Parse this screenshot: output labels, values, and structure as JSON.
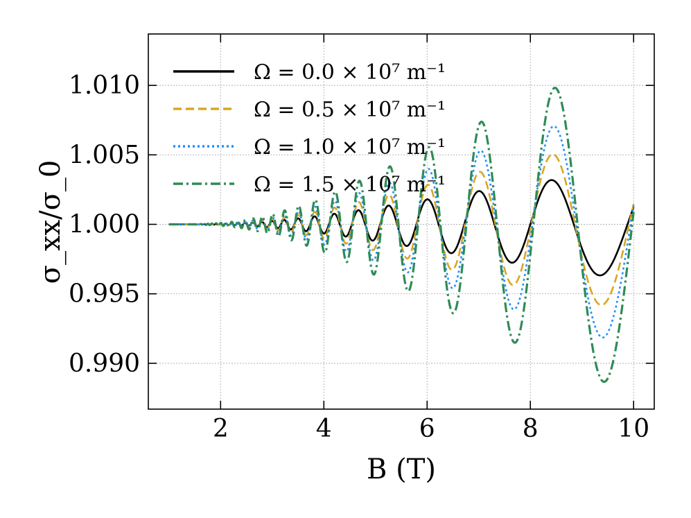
{
  "chart_data": {
    "type": "line",
    "xlabel": "B (T)",
    "ylabel": "σ_xx/σ_0",
    "xlim": [
      0.6,
      10.4
    ],
    "ylim": [
      0.9867,
      1.0137
    ],
    "x_ticks": [
      2,
      4,
      6,
      8,
      10
    ],
    "x_tick_labels": [
      "2",
      "4",
      "6",
      "8",
      "10"
    ],
    "y_ticks": [
      0.99,
      0.995,
      1.0,
      1.005,
      1.01
    ],
    "y_tick_labels": [
      "0.990",
      "0.995",
      "1.000",
      "1.005",
      "1.010"
    ],
    "grid": true,
    "legend_position": "top-left",
    "x_range": [
      1.0,
      10.0
    ],
    "series": [
      {
        "name": "Ω = 0.0 × 10⁷ m⁻¹",
        "color": "#000000",
        "style": "solid",
        "amplitude_at_B10": 0.004
      },
      {
        "name": "Ω = 0.5 × 10⁷ m⁻¹",
        "color": "#DAA520",
        "style": "dashed",
        "amplitude_at_B10": 0.0063
      },
      {
        "name": "Ω = 1.0 × 10⁷ m⁻¹",
        "color": "#1E90FF",
        "style": "dotted",
        "amplitude_at_B10": 0.0088
      },
      {
        "name": "Ω = 1.5 × 10⁷ m⁻¹",
        "color": "#2E8B57",
        "style": "dashdot",
        "amplitude_at_B10": 0.0122
      }
    ]
  }
}
